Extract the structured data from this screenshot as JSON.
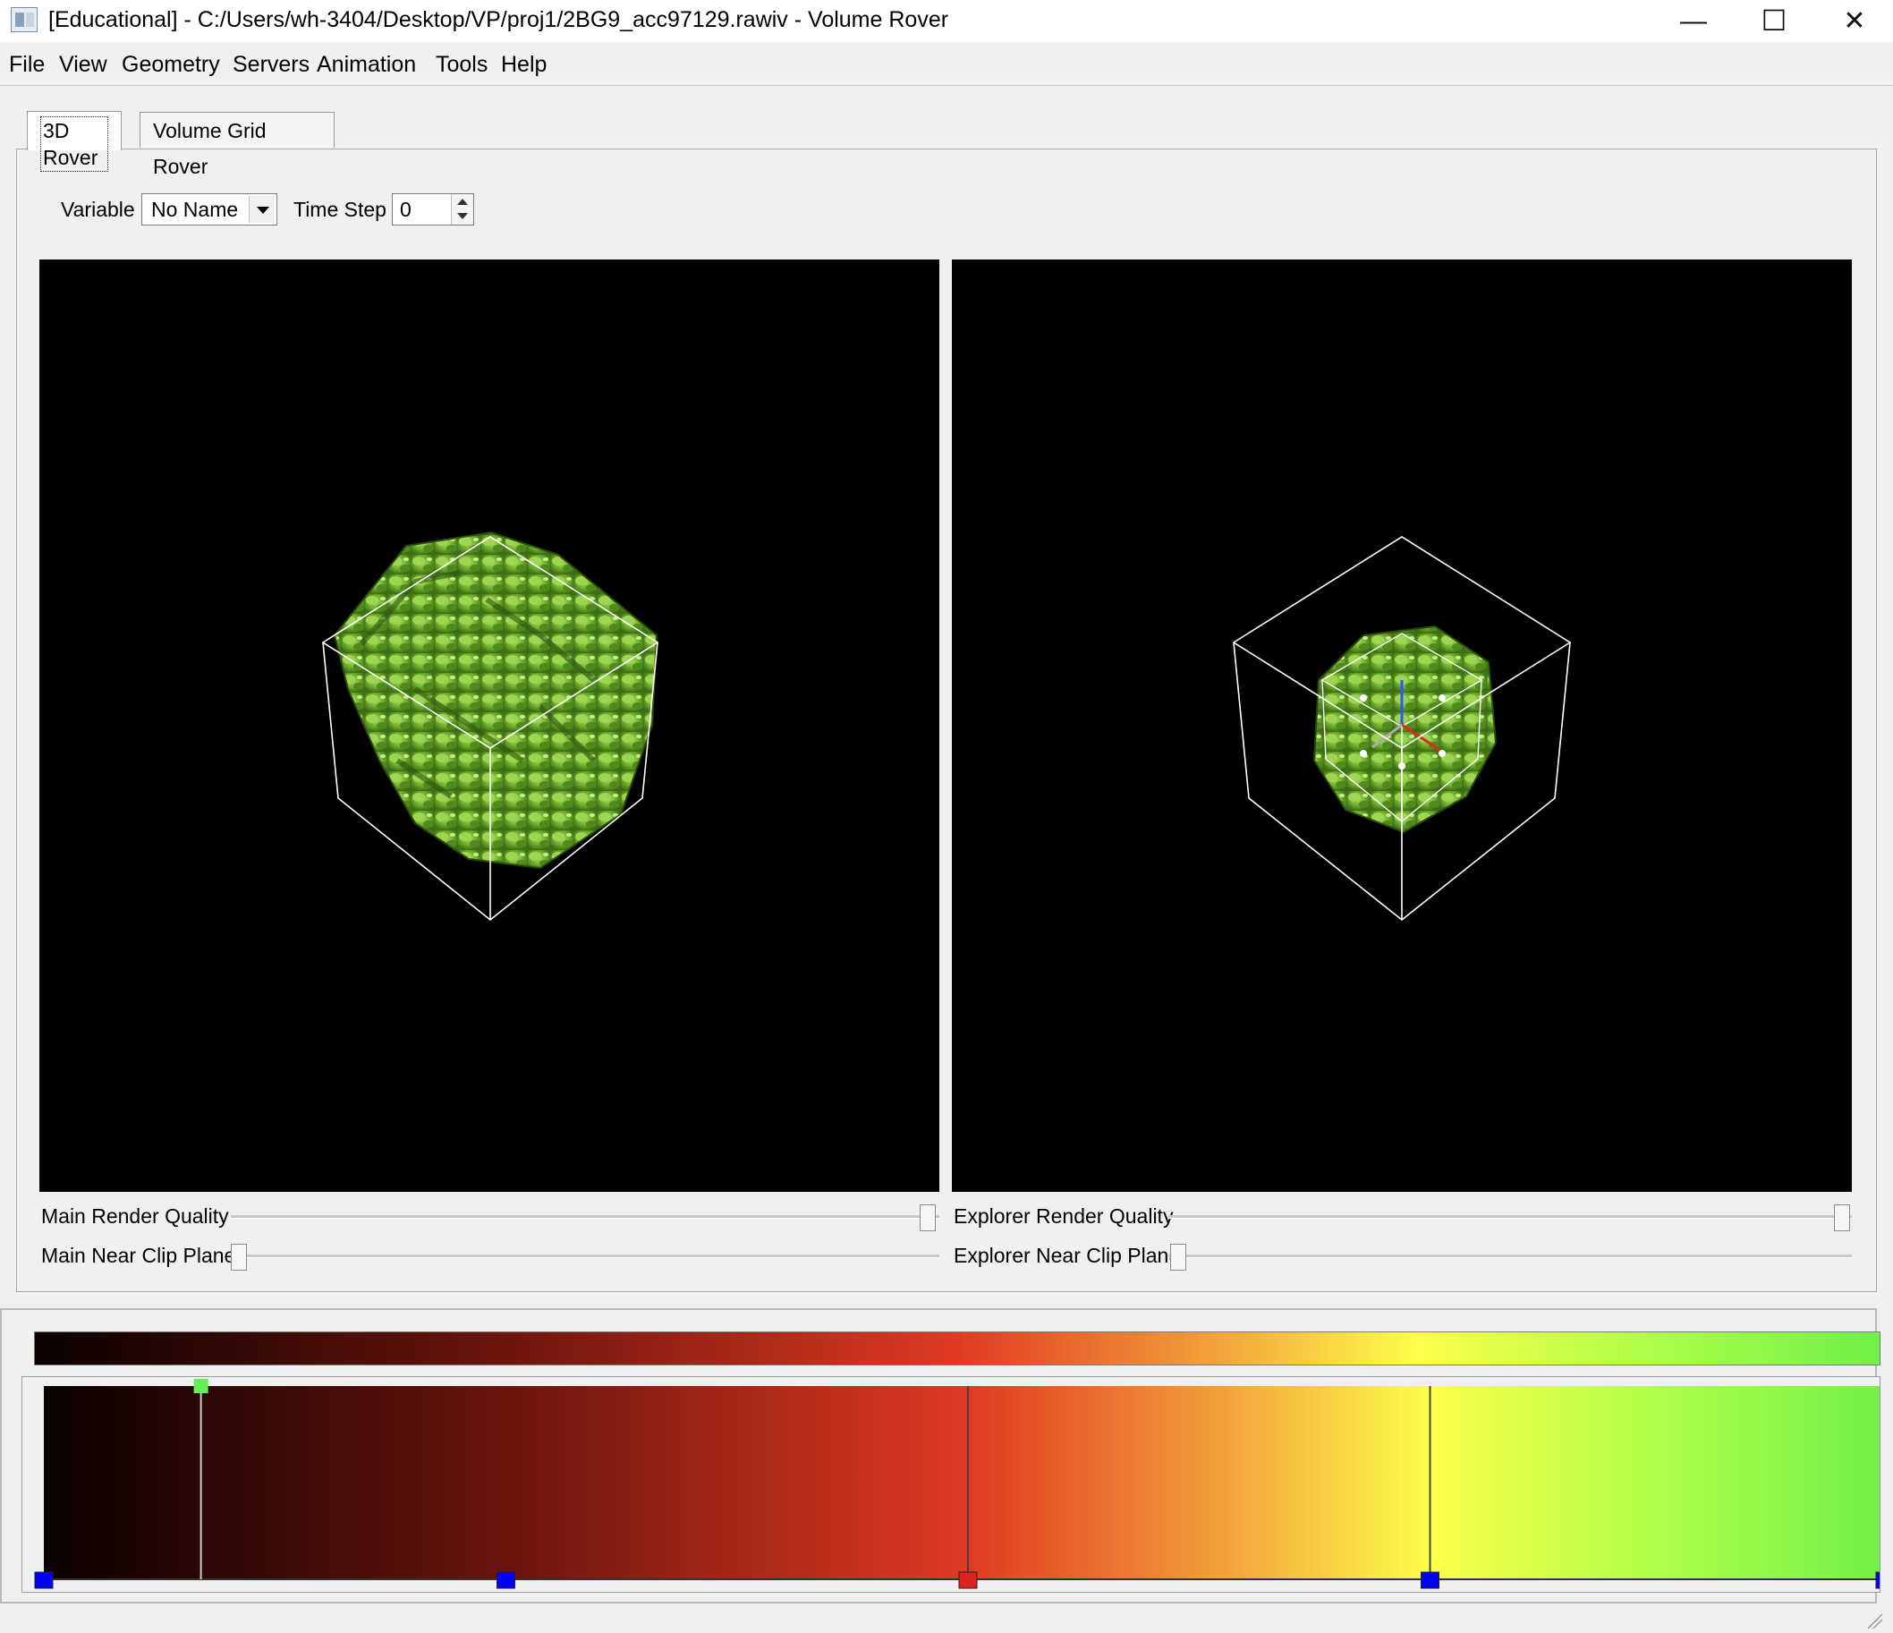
{
  "window": {
    "title": "[Educational] - C:/Users/wh-3404/Desktop/VP/proj1/2BG9_acc97129.rawiv - Volume Rover",
    "minimize_glyph": "—",
    "maximize_glyph": "☐",
    "close_glyph": "✕",
    "app_icon": "window-app-icon"
  },
  "menu": [
    "File",
    "View",
    "Geometry",
    "Servers",
    "Animation",
    "Tools",
    "Help"
  ],
  "tabs": [
    {
      "label": "3D Rover",
      "active": true
    },
    {
      "label": "Volume Grid Rover",
      "active": false
    }
  ],
  "controls": {
    "variable_label": "Variable",
    "variable_value": "No Name",
    "timestep_label": "Time Step",
    "timestep_value": "0"
  },
  "viewers": {
    "main": {
      "background": "#000000",
      "isosurface_color": "#7fc23a"
    },
    "explorer": {
      "background": "#000000",
      "isosurface_color": "#7fc23a"
    }
  },
  "sliders": {
    "main_render_quality": {
      "label": "Main Render Quality",
      "value": 1.0
    },
    "main_near_clip": {
      "label": "Main Near Clip Plane",
      "value": 0.0
    },
    "explorer_render_quality": {
      "label": "Explorer Render Quality",
      "value": 1.0
    },
    "explorer_near_clip": {
      "label": "Explorer Near Clip Plane",
      "value": 0.0
    }
  },
  "transfer_function": {
    "gradient_stops": [
      {
        "pos": 0.0,
        "color": "#0a0000"
      },
      {
        "pos": 0.25,
        "color": "#6a140c"
      },
      {
        "pos": 0.5,
        "color": "#e03a22"
      },
      {
        "pos": 0.63,
        "color": "#f29a3a"
      },
      {
        "pos": 0.75,
        "color": "#fdff4a"
      },
      {
        "pos": 0.87,
        "color": "#b0ff48"
      },
      {
        "pos": 1.0,
        "color": "#70f048"
      }
    ],
    "isocontour": {
      "pos": 0.085,
      "color": "#66ee55"
    },
    "lines": [
      0.5,
      0.75,
      1.0
    ],
    "control_points": [
      {
        "pos": 0.0,
        "color": "#0000ff"
      },
      {
        "pos": 0.25,
        "color": "#0000ff"
      },
      {
        "pos": 0.5,
        "color": "#dd2222"
      },
      {
        "pos": 0.75,
        "color": "#0000ff"
      },
      {
        "pos": 1.0,
        "color": "#0000ff"
      }
    ]
  }
}
